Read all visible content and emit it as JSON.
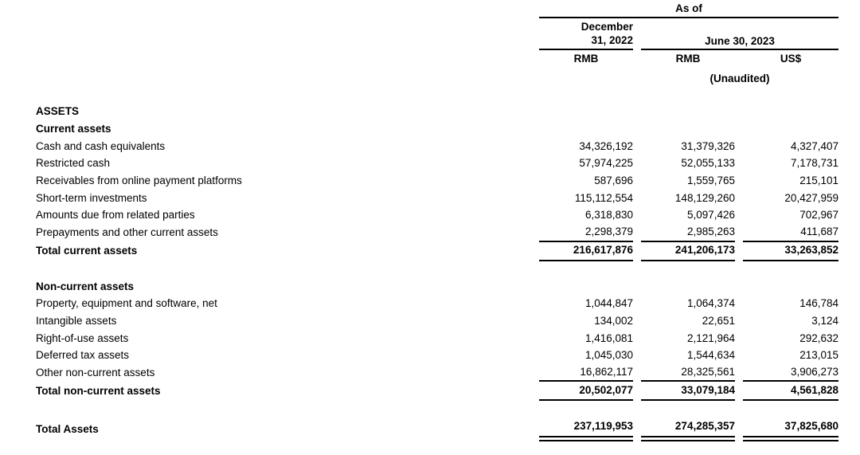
{
  "header": {
    "as_of": "As of",
    "col1_date_line1": "December",
    "col1_date_line2": "31, 2022",
    "col2_date": "June 30, 2023",
    "currency_col1": "RMB",
    "currency_col2": "RMB",
    "currency_col3": "US$",
    "unaudited_note": "(Unaudited)"
  },
  "colors": {
    "background": "#ffffff",
    "text": "#000000",
    "rule": "#000000"
  },
  "rows": [
    {
      "label": "ASSETS",
      "dec2022": "",
      "jun2023_rmb": "",
      "jun2023_usd": ""
    },
    {
      "label": "Current assets",
      "dec2022": "",
      "jun2023_rmb": "",
      "jun2023_usd": ""
    },
    {
      "label": "Cash and cash equivalents",
      "dec2022": "34,326,192",
      "jun2023_rmb": "31,379,326",
      "jun2023_usd": "4,327,407"
    },
    {
      "label": "Restricted cash",
      "dec2022": "57,974,225",
      "jun2023_rmb": "52,055,133",
      "jun2023_usd": "7,178,731"
    },
    {
      "label": "Receivables from online payment platforms",
      "dec2022": "587,696",
      "jun2023_rmb": "1,559,765",
      "jun2023_usd": "215,101"
    },
    {
      "label": "Short-term investments",
      "dec2022": "115,112,554",
      "jun2023_rmb": "148,129,260",
      "jun2023_usd": "20,427,959"
    },
    {
      "label": "Amounts due from related parties",
      "dec2022": "6,318,830",
      "jun2023_rmb": "5,097,426",
      "jun2023_usd": "702,967"
    },
    {
      "label": "Prepayments and other current assets",
      "dec2022": "2,298,379",
      "jun2023_rmb": "2,985,263",
      "jun2023_usd": "411,687"
    },
    {
      "label": "Total current assets",
      "dec2022": "216,617,876",
      "jun2023_rmb": "241,206,173",
      "jun2023_usd": "33,263,852"
    },
    {
      "label": "Non-current assets",
      "dec2022": "",
      "jun2023_rmb": "",
      "jun2023_usd": ""
    },
    {
      "label": "Property, equipment and software, net",
      "dec2022": "1,044,847",
      "jun2023_rmb": "1,064,374",
      "jun2023_usd": "146,784"
    },
    {
      "label": "Intangible assets",
      "dec2022": "134,002",
      "jun2023_rmb": "22,651",
      "jun2023_usd": "3,124"
    },
    {
      "label": "Right-of-use assets",
      "dec2022": "1,416,081",
      "jun2023_rmb": "2,121,964",
      "jun2023_usd": "292,632"
    },
    {
      "label": "Deferred tax assets",
      "dec2022": "1,045,030",
      "jun2023_rmb": "1,544,634",
      "jun2023_usd": "213,015"
    },
    {
      "label": "Other non-current assets",
      "dec2022": "16,862,117",
      "jun2023_rmb": "28,325,561",
      "jun2023_usd": "3,906,273"
    },
    {
      "label": "Total non-current assets",
      "dec2022": "20,502,077",
      "jun2023_rmb": "33,079,184",
      "jun2023_usd": "4,561,828"
    },
    {
      "label": "Total Assets",
      "dec2022": "237,119,953",
      "jun2023_rmb": "274,285,357",
      "jun2023_usd": "37,825,680"
    }
  ]
}
